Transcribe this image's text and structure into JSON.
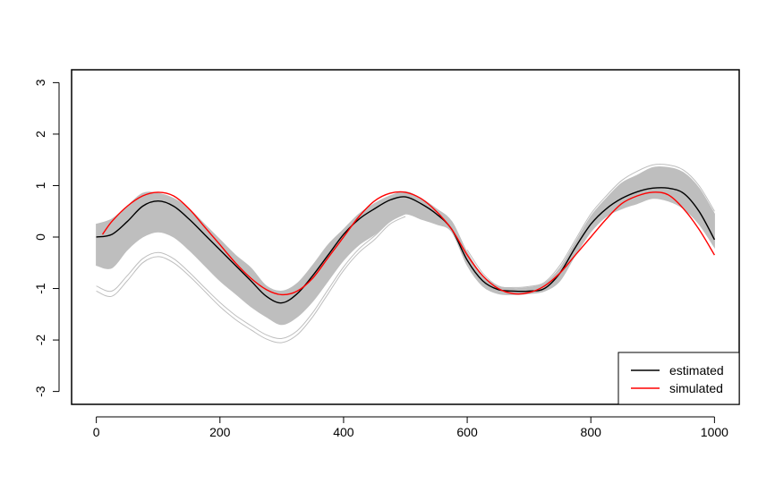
{
  "chart_data": {
    "type": "line",
    "title": "",
    "xlabel": "",
    "ylabel": "",
    "xlim": [
      -40,
      1040
    ],
    "ylim": [
      -3.25,
      3.25
    ],
    "x_ticks": [
      0,
      200,
      400,
      600,
      800,
      1000
    ],
    "y_ticks": [
      -3,
      -2,
      -1,
      0,
      1,
      2,
      3
    ],
    "x_tick_labels": [
      "0",
      "200",
      "400",
      "600",
      "800",
      "1000"
    ],
    "y_tick_labels": [
      "-3",
      "-2",
      "-1",
      "0",
      "1",
      "2",
      "3"
    ],
    "grid": false,
    "legend_position": "bottom-right",
    "series": [
      {
        "name": "estimated",
        "color": "#000000",
        "x": [
          0,
          25,
          50,
          75,
          100,
          125,
          150,
          175,
          200,
          225,
          250,
          275,
          300,
          325,
          350,
          375,
          400,
          425,
          450,
          475,
          500,
          525,
          550,
          575,
          600,
          625,
          650,
          675,
          700,
          725,
          750,
          775,
          800,
          825,
          850,
          875,
          900,
          925,
          950,
          975,
          1000
        ],
        "y": [
          0.0,
          0.05,
          0.3,
          0.6,
          0.7,
          0.6,
          0.35,
          0.05,
          -0.25,
          -0.55,
          -0.85,
          -1.15,
          -1.28,
          -1.1,
          -0.75,
          -0.35,
          0.05,
          0.35,
          0.55,
          0.72,
          0.78,
          0.65,
          0.45,
          0.15,
          -0.45,
          -0.85,
          -1.02,
          -1.05,
          -1.05,
          -1.0,
          -0.7,
          -0.2,
          0.25,
          0.55,
          0.75,
          0.88,
          0.95,
          0.95,
          0.85,
          0.5,
          -0.05
        ]
      },
      {
        "name": "simulated",
        "color": "#ff0000",
        "x": [
          10,
          25,
          50,
          75,
          100,
          125,
          150,
          175,
          200,
          225,
          250,
          275,
          300,
          325,
          350,
          375,
          400,
          425,
          450,
          475,
          500,
          525,
          550,
          575,
          600,
          625,
          650,
          675,
          700,
          725,
          750,
          775,
          800,
          825,
          850,
          875,
          900,
          925,
          950,
          975,
          1000
        ],
        "y": [
          0.05,
          0.3,
          0.6,
          0.8,
          0.87,
          0.8,
          0.55,
          0.2,
          -0.15,
          -0.5,
          -0.8,
          -1.02,
          -1.12,
          -1.05,
          -0.8,
          -0.4,
          0.0,
          0.4,
          0.7,
          0.85,
          0.87,
          0.75,
          0.5,
          0.15,
          -0.35,
          -0.75,
          -1.0,
          -1.1,
          -1.08,
          -0.95,
          -0.7,
          -0.35,
          0.0,
          0.35,
          0.65,
          0.8,
          0.87,
          0.82,
          0.55,
          0.15,
          -0.35
        ]
      }
    ],
    "band": {
      "color": "#bebebe",
      "x": [
        0,
        25,
        50,
        75,
        100,
        125,
        150,
        175,
        200,
        225,
        250,
        275,
        300,
        325,
        350,
        375,
        400,
        425,
        450,
        475,
        500,
        525,
        550,
        575,
        600,
        625,
        650,
        675,
        700,
        725,
        750,
        775,
        800,
        825,
        850,
        875,
        900,
        925,
        950,
        975,
        1000
      ],
      "upper": [
        0.25,
        0.35,
        0.6,
        0.85,
        0.85,
        0.75,
        0.55,
        0.25,
        -0.05,
        -0.35,
        -0.6,
        -0.95,
        -1.05,
        -0.9,
        -0.55,
        -0.15,
        0.15,
        0.45,
        0.65,
        0.8,
        0.88,
        0.75,
        0.55,
        0.3,
        -0.3,
        -0.75,
        -0.95,
        -1.0,
        -0.98,
        -0.9,
        -0.6,
        -0.1,
        0.4,
        0.75,
        1.05,
        1.2,
        1.35,
        1.35,
        1.25,
        0.95,
        0.45
      ],
      "lower": [
        -0.55,
        -0.6,
        -0.25,
        0.0,
        0.1,
        0.0,
        -0.25,
        -0.55,
        -0.85,
        -1.1,
        -1.35,
        -1.55,
        -1.7,
        -1.55,
        -1.25,
        -0.85,
        -0.45,
        -0.15,
        0.05,
        0.3,
        0.45,
        0.35,
        0.25,
        0.1,
        -0.55,
        -0.95,
        -1.1,
        -1.12,
        -1.1,
        -1.05,
        -0.85,
        -0.35,
        0.1,
        0.4,
        0.55,
        0.65,
        0.75,
        0.7,
        0.55,
        0.25,
        -0.2
      ]
    },
    "outliers": [
      {
        "color": "#bebebe",
        "x": [
          0,
          25,
          50,
          75,
          100,
          125,
          150,
          175,
          200,
          225,
          250,
          275,
          300,
          325,
          350,
          375,
          400,
          425,
          450,
          475,
          500
        ],
        "y": [
          -1.05,
          -1.15,
          -0.85,
          -0.5,
          -0.38,
          -0.5,
          -0.75,
          -1.05,
          -1.35,
          -1.6,
          -1.8,
          -1.98,
          -2.05,
          -1.9,
          -1.55,
          -1.1,
          -0.65,
          -0.3,
          -0.05,
          0.25,
          0.4
        ]
      },
      {
        "color": "#bebebe",
        "x": [
          0,
          25,
          50,
          75,
          100,
          125,
          150,
          175,
          200,
          225,
          250,
          275,
          300,
          325,
          350,
          375,
          400,
          425,
          450,
          475,
          500
        ],
        "y": [
          -0.95,
          -1.05,
          -0.75,
          -0.42,
          -0.3,
          -0.42,
          -0.68,
          -0.98,
          -1.27,
          -1.52,
          -1.72,
          -1.9,
          -1.97,
          -1.82,
          -1.47,
          -1.02,
          -0.58,
          -0.23,
          0.02,
          0.3,
          0.45
        ]
      },
      {
        "color": "#bebebe",
        "x": [
          600,
          625,
          650,
          675,
          700,
          725,
          750,
          775,
          800,
          825,
          850,
          875,
          900,
          925,
          950,
          975,
          1000
        ],
        "y": [
          -0.25,
          -0.7,
          -0.95,
          -0.98,
          -0.96,
          -0.88,
          -0.55,
          -0.05,
          0.45,
          0.8,
          1.1,
          1.28,
          1.4,
          1.4,
          1.3,
          1.0,
          0.5
        ]
      }
    ]
  }
}
